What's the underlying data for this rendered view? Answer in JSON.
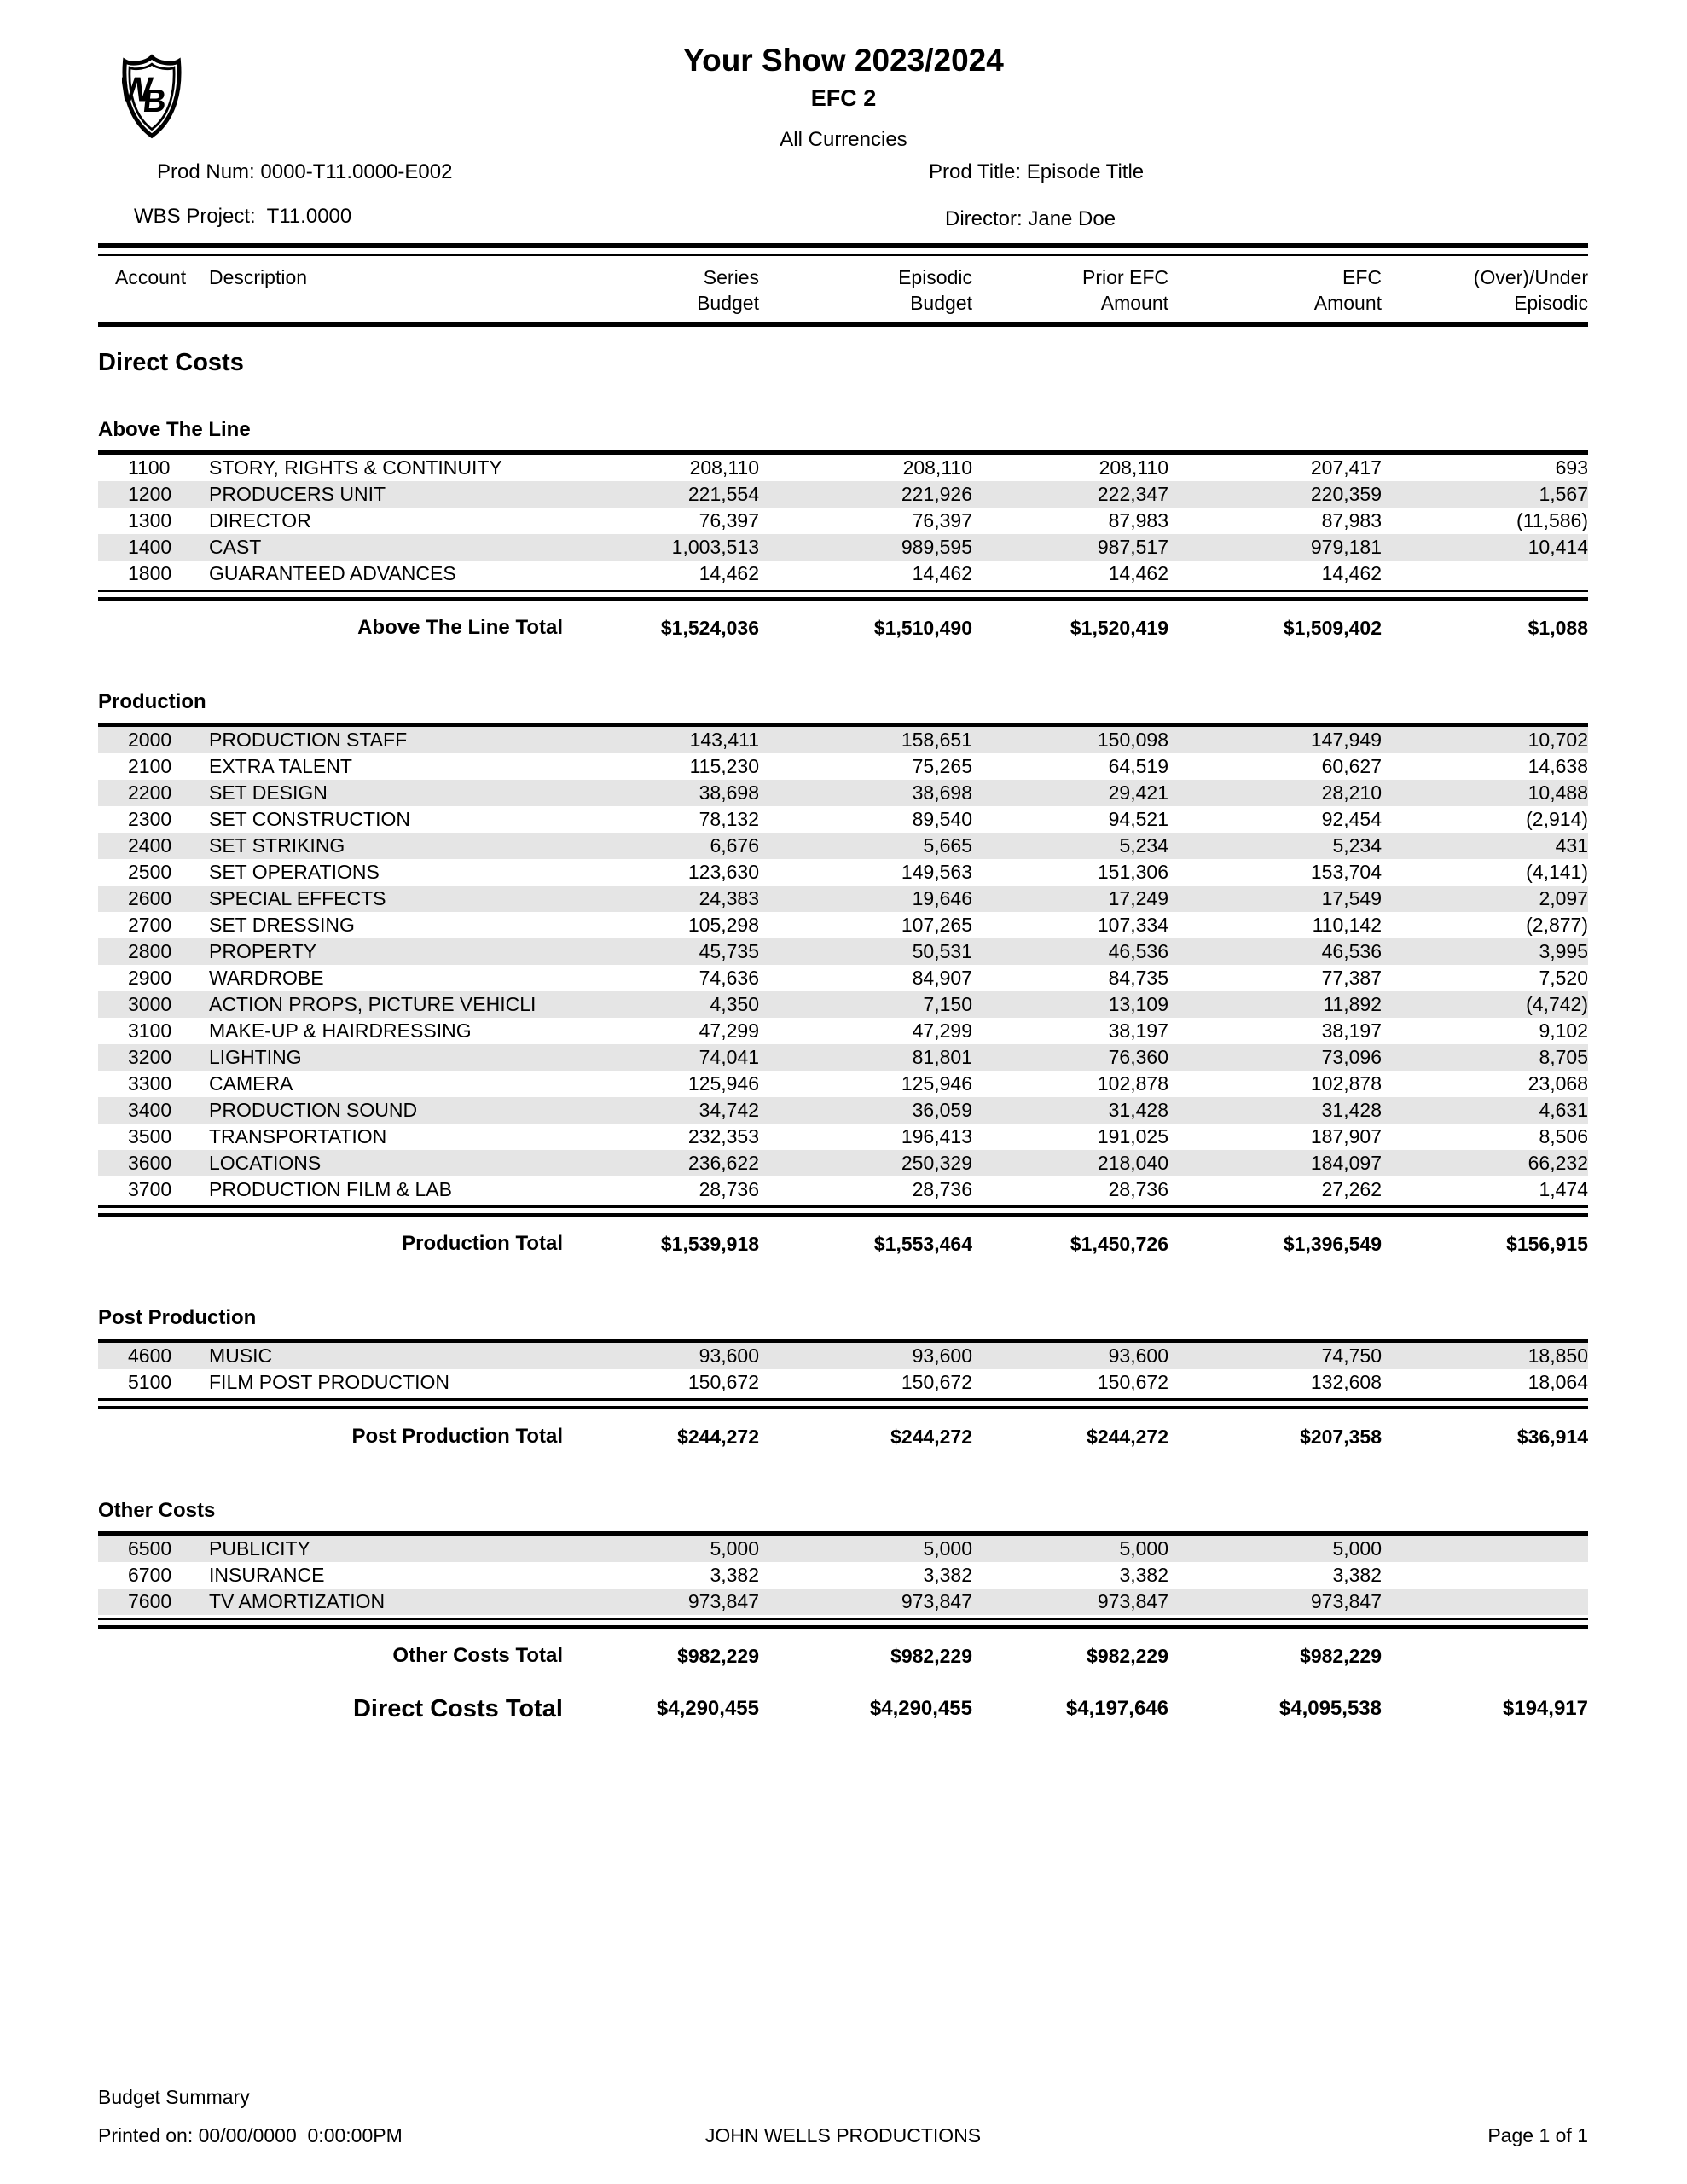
{
  "header": {
    "logo_text": "WB",
    "title": "Your Show 2023/2024",
    "subtitle": "EFC 2",
    "currency_note": "All Currencies",
    "prod_num": "Prod Num: 0000-T11.0000-E002",
    "prod_title": "Prod Title: Episode Title",
    "wbs_project": "WBS Project:  T11.0000",
    "director": "Director: Jane Doe"
  },
  "columns": {
    "account": "Account",
    "description": "Description",
    "c1a": "Series",
    "c1b": "Budget",
    "c2a": "Episodic",
    "c2b": "Budget",
    "c3a": "Prior EFC",
    "c3b": "Amount",
    "c4a": "EFC",
    "c4b": "Amount",
    "c5a": "(Over)/Under",
    "c5b": "Episodic"
  },
  "direct_costs_heading": "Direct Costs",
  "sections": [
    {
      "heading": "Above The Line",
      "shade_first": false,
      "rows": [
        {
          "account": "1100",
          "desc": "STORY, RIGHTS & CONTINUITY",
          "vals": [
            "208,110",
            "208,110",
            "208,110",
            "207,417",
            "693"
          ]
        },
        {
          "account": "1200",
          "desc": "PRODUCERS UNIT",
          "vals": [
            "221,554",
            "221,926",
            "222,347",
            "220,359",
            "1,567"
          ]
        },
        {
          "account": "1300",
          "desc": "DIRECTOR",
          "vals": [
            "76,397",
            "76,397",
            "87,983",
            "87,983",
            "(11,586)"
          ]
        },
        {
          "account": "1400",
          "desc": "CAST",
          "vals": [
            "1,003,513",
            "989,595",
            "987,517",
            "979,181",
            "10,414"
          ]
        },
        {
          "account": "1800",
          "desc": "GUARANTEED ADVANCES",
          "vals": [
            "14,462",
            "14,462",
            "14,462",
            "14,462",
            ""
          ]
        }
      ],
      "total_label": "Above The Line Total",
      "total_vals": [
        "$1,524,036",
        "$1,510,490",
        "$1,520,419",
        "$1,509,402",
        "$1,088"
      ]
    },
    {
      "heading": "Production",
      "shade_first": true,
      "rows": [
        {
          "account": "2000",
          "desc": "PRODUCTION STAFF",
          "vals": [
            "143,411",
            "158,651",
            "150,098",
            "147,949",
            "10,702"
          ]
        },
        {
          "account": "2100",
          "desc": "EXTRA TALENT",
          "vals": [
            "115,230",
            "75,265",
            "64,519",
            "60,627",
            "14,638"
          ]
        },
        {
          "account": "2200",
          "desc": "SET DESIGN",
          "vals": [
            "38,698",
            "38,698",
            "29,421",
            "28,210",
            "10,488"
          ]
        },
        {
          "account": "2300",
          "desc": "SET CONSTRUCTION",
          "vals": [
            "78,132",
            "89,540",
            "94,521",
            "92,454",
            "(2,914)"
          ]
        },
        {
          "account": "2400",
          "desc": "SET STRIKING",
          "vals": [
            "6,676",
            "5,665",
            "5,234",
            "5,234",
            "431"
          ]
        },
        {
          "account": "2500",
          "desc": "SET OPERATIONS",
          "vals": [
            "123,630",
            "149,563",
            "151,306",
            "153,704",
            "(4,141)"
          ]
        },
        {
          "account": "2600",
          "desc": "SPECIAL EFFECTS",
          "vals": [
            "24,383",
            "19,646",
            "17,249",
            "17,549",
            "2,097"
          ]
        },
        {
          "account": "2700",
          "desc": "SET DRESSING",
          "vals": [
            "105,298",
            "107,265",
            "107,334",
            "110,142",
            "(2,877)"
          ]
        },
        {
          "account": "2800",
          "desc": "PROPERTY",
          "vals": [
            "45,735",
            "50,531",
            "46,536",
            "46,536",
            "3,995"
          ]
        },
        {
          "account": "2900",
          "desc": "WARDROBE",
          "vals": [
            "74,636",
            "84,907",
            "84,735",
            "77,387",
            "7,520"
          ]
        },
        {
          "account": "3000",
          "desc": "ACTION PROPS, PICTURE VEHICLI",
          "vals": [
            "4,350",
            "7,150",
            "13,109",
            "11,892",
            "(4,742)"
          ]
        },
        {
          "account": "3100",
          "desc": "MAKE-UP & HAIRDRESSING",
          "vals": [
            "47,299",
            "47,299",
            "38,197",
            "38,197",
            "9,102"
          ]
        },
        {
          "account": "3200",
          "desc": "LIGHTING",
          "vals": [
            "74,041",
            "81,801",
            "76,360",
            "73,096",
            "8,705"
          ]
        },
        {
          "account": "3300",
          "desc": "CAMERA",
          "vals": [
            "125,946",
            "125,946",
            "102,878",
            "102,878",
            "23,068"
          ]
        },
        {
          "account": "3400",
          "desc": "PRODUCTION SOUND",
          "vals": [
            "34,742",
            "36,059",
            "31,428",
            "31,428",
            "4,631"
          ]
        },
        {
          "account": "3500",
          "desc": "TRANSPORTATION",
          "vals": [
            "232,353",
            "196,413",
            "191,025",
            "187,907",
            "8,506"
          ]
        },
        {
          "account": "3600",
          "desc": "LOCATIONS",
          "vals": [
            "236,622",
            "250,329",
            "218,040",
            "184,097",
            "66,232"
          ]
        },
        {
          "account": "3700",
          "desc": "PRODUCTION FILM & LAB",
          "vals": [
            "28,736",
            "28,736",
            "28,736",
            "27,262",
            "1,474"
          ]
        }
      ],
      "total_label": "Production Total",
      "total_vals": [
        "$1,539,918",
        "$1,553,464",
        "$1,450,726",
        "$1,396,549",
        "$156,915"
      ]
    },
    {
      "heading": "Post Production",
      "shade_first": true,
      "rows": [
        {
          "account": "4600",
          "desc": "MUSIC",
          "vals": [
            "93,600",
            "93,600",
            "93,600",
            "74,750",
            "18,850"
          ]
        },
        {
          "account": "5100",
          "desc": "FILM POST PRODUCTION",
          "vals": [
            "150,672",
            "150,672",
            "150,672",
            "132,608",
            "18,064"
          ]
        }
      ],
      "total_label": "Post Production Total",
      "total_vals": [
        "$244,272",
        "$244,272",
        "$244,272",
        "$207,358",
        "$36,914"
      ]
    },
    {
      "heading": "Other Costs",
      "shade_first": true,
      "rows": [
        {
          "account": "6500",
          "desc": "PUBLICITY",
          "vals": [
            "5,000",
            "5,000",
            "5,000",
            "5,000",
            ""
          ]
        },
        {
          "account": "6700",
          "desc": "INSURANCE",
          "vals": [
            "3,382",
            "3,382",
            "3,382",
            "3,382",
            ""
          ]
        },
        {
          "account": "7600",
          "desc": "TV AMORTIZATION",
          "vals": [
            "973,847",
            "973,847",
            "973,847",
            "973,847",
            ""
          ]
        }
      ],
      "total_label": "Other Costs Total",
      "total_vals": [
        "$982,229",
        "$982,229",
        "$982,229",
        "$982,229",
        ""
      ]
    }
  ],
  "grand_total": {
    "label": "Direct Costs Total",
    "vals": [
      "$4,290,455",
      "$4,290,455",
      "$4,197,646",
      "$4,095,538",
      "$194,917"
    ]
  },
  "footer": {
    "report_name": "Budget Summary",
    "printed_on": "Printed on: 00/00/0000  0:00:00PM",
    "company": "JOHN WELLS PRODUCTIONS",
    "page": "Page 1 of 1"
  }
}
